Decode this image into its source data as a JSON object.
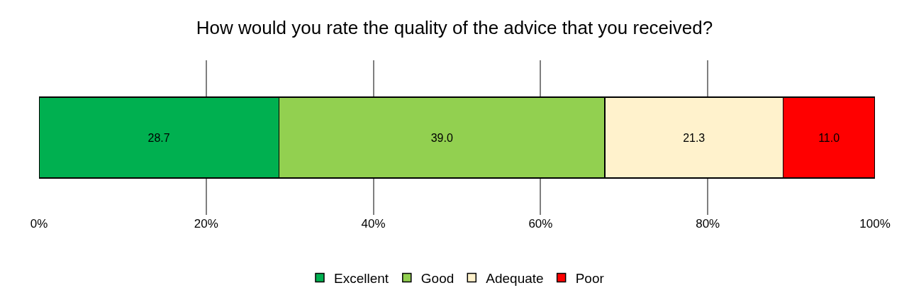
{
  "chart_data": {
    "type": "bar",
    "title": "How would you rate the quality of the advice that you received?",
    "orientation": "horizontal",
    "stacked": true,
    "categories": [
      null
    ],
    "series": [
      {
        "name": "Excellent",
        "color": "#00b050",
        "values": [
          28.7
        ]
      },
      {
        "name": "Good",
        "color": "#92d050",
        "values": [
          39.0
        ]
      },
      {
        "name": "Adequate",
        "color": "#fff2cc",
        "values": [
          21.3
        ]
      },
      {
        "name": "Poor",
        "color": "#ff0000",
        "values": [
          11.0
        ]
      }
    ],
    "value_labels": [
      "28.7",
      "39.0",
      "21.3",
      "11.0"
    ],
    "xlim": [
      0,
      100
    ],
    "xticks": [
      {
        "value": 0,
        "label": "0%"
      },
      {
        "value": 20,
        "label": "20%"
      },
      {
        "value": 40,
        "label": "40%"
      },
      {
        "value": 60,
        "label": "60%"
      },
      {
        "value": 80,
        "label": "80%"
      },
      {
        "value": 100,
        "label": "100%"
      }
    ],
    "grid": "x",
    "legend": "bottom"
  }
}
